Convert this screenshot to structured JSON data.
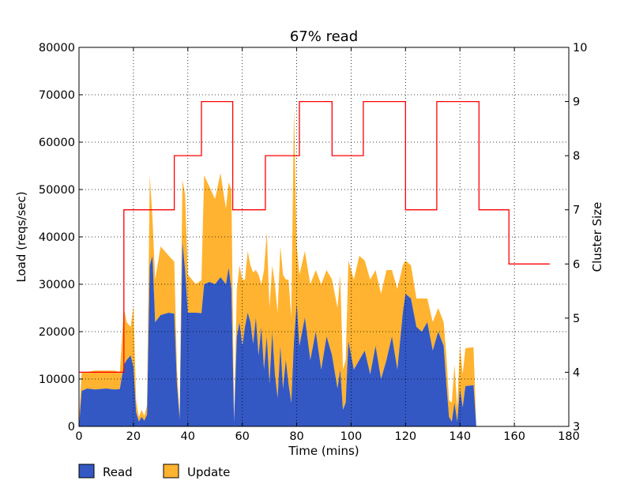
{
  "chart_data": {
    "type": "area",
    "title": "67% read",
    "xlabel": "Time (mins)",
    "ylabel": "Load (reqs/sec)",
    "y2label": "Cluster Size",
    "xlim": [
      0,
      180
    ],
    "ylim": [
      0,
      80000
    ],
    "y2lim": [
      3,
      10
    ],
    "xticks": [
      0,
      20,
      40,
      60,
      80,
      100,
      120,
      140,
      160,
      180
    ],
    "yticks": [
      0,
      10000,
      20000,
      30000,
      40000,
      50000,
      60000,
      70000,
      80000
    ],
    "y2ticks": [
      3,
      4,
      5,
      6,
      7,
      8,
      9,
      10
    ],
    "grid": true,
    "legend_position": "bottom-left",
    "colors": {
      "read": "#3358c4",
      "update": "#ffb330",
      "cluster": "#ff0000"
    },
    "series": [
      {
        "name": "Read",
        "stack": true,
        "points": [
          [
            0,
            0
          ],
          [
            1,
            7500
          ],
          [
            3,
            8000
          ],
          [
            6,
            7800
          ],
          [
            10,
            8000
          ],
          [
            13,
            7800
          ],
          [
            15,
            7900
          ],
          [
            16.5,
            13000
          ],
          [
            17.5,
            14000
          ],
          [
            19,
            15000
          ],
          [
            20,
            12500
          ],
          [
            21,
            3000
          ],
          [
            22,
            1000
          ],
          [
            23,
            2000
          ],
          [
            24,
            1200
          ],
          [
            25,
            2500
          ],
          [
            26,
            34000
          ],
          [
            27,
            36000
          ],
          [
            28,
            22000
          ],
          [
            30,
            23500
          ],
          [
            33,
            24000
          ],
          [
            35,
            23800
          ],
          [
            36,
            9000
          ],
          [
            37,
            1500
          ],
          [
            38,
            39000
          ],
          [
            39,
            33000
          ],
          [
            40,
            24000
          ],
          [
            43,
            24000
          ],
          [
            45,
            23900
          ],
          [
            46,
            30000
          ],
          [
            48,
            30500
          ],
          [
            50,
            30000
          ],
          [
            52,
            31500
          ],
          [
            54,
            30000
          ],
          [
            55,
            33500
          ],
          [
            56,
            29000
          ],
          [
            57,
            1000
          ],
          [
            58,
            19000
          ],
          [
            59,
            22000
          ],
          [
            60,
            17000
          ],
          [
            61,
            21000
          ],
          [
            62,
            24000
          ],
          [
            63,
            22000
          ],
          [
            64,
            17500
          ],
          [
            65,
            23000
          ],
          [
            66,
            15000
          ],
          [
            67,
            21000
          ],
          [
            68,
            12000
          ],
          [
            69,
            19000
          ],
          [
            70,
            9000
          ],
          [
            71,
            20000
          ],
          [
            72,
            11000
          ],
          [
            73,
            6000
          ],
          [
            74,
            17000
          ],
          [
            75,
            8000
          ],
          [
            76,
            14000
          ],
          [
            77,
            9000
          ],
          [
            78,
            5000
          ],
          [
            79,
            18000
          ],
          [
            80,
            26000
          ],
          [
            81,
            17000
          ],
          [
            83,
            23000
          ],
          [
            85,
            14000
          ],
          [
            87,
            20000
          ],
          [
            89,
            12000
          ],
          [
            91,
            19000
          ],
          [
            93,
            15000
          ],
          [
            95,
            8000
          ],
          [
            96,
            12000
          ],
          [
            97,
            3500
          ],
          [
            98,
            5000
          ],
          [
            99,
            18000
          ],
          [
            101,
            12000
          ],
          [
            103,
            14000
          ],
          [
            105,
            16000
          ],
          [
            107,
            11000
          ],
          [
            109,
            17000
          ],
          [
            111,
            10000
          ],
          [
            113,
            14000
          ],
          [
            115,
            19000
          ],
          [
            117,
            12000
          ],
          [
            119,
            24000
          ],
          [
            120,
            28000
          ],
          [
            122,
            27000
          ],
          [
            124,
            21000
          ],
          [
            126,
            20000
          ],
          [
            128,
            22000
          ],
          [
            130,
            16000
          ],
          [
            132,
            20000
          ],
          [
            134,
            17000
          ],
          [
            135,
            9000
          ],
          [
            136,
            2000
          ],
          [
            137,
            1000
          ],
          [
            138,
            5000
          ],
          [
            139,
            1000
          ],
          [
            140,
            8000
          ],
          [
            141,
            4000
          ],
          [
            142,
            8500
          ],
          [
            145,
            8700
          ],
          [
            146,
            0
          ],
          [
            172,
            0
          ]
        ]
      },
      {
        "name": "Update",
        "stack": true,
        "points": [
          [
            0,
            1500
          ],
          [
            1,
            4000
          ],
          [
            3,
            3500
          ],
          [
            6,
            4000
          ],
          [
            10,
            3800
          ],
          [
            13,
            4000
          ],
          [
            15,
            3600
          ],
          [
            16.5,
            12000
          ],
          [
            17.5,
            8000
          ],
          [
            19,
            6000
          ],
          [
            20,
            13000
          ],
          [
            21,
            2500
          ],
          [
            22,
            1000
          ],
          [
            23,
            1500
          ],
          [
            24,
            1000
          ],
          [
            25,
            2000
          ],
          [
            26,
            19000
          ],
          [
            27,
            8000
          ],
          [
            28,
            9000
          ],
          [
            30,
            14500
          ],
          [
            33,
            12000
          ],
          [
            35,
            11000
          ],
          [
            36,
            3000
          ],
          [
            37,
            1000
          ],
          [
            38,
            13000
          ],
          [
            39,
            16000
          ],
          [
            40,
            8000
          ],
          [
            43,
            6000
          ],
          [
            45,
            7000
          ],
          [
            46,
            23000
          ],
          [
            48,
            20000
          ],
          [
            50,
            18000
          ],
          [
            52,
            22000
          ],
          [
            54,
            16000
          ],
          [
            55,
            18000
          ],
          [
            56,
            21000
          ],
          [
            57,
            500
          ],
          [
            58,
            10000
          ],
          [
            59,
            12000
          ],
          [
            60,
            14000
          ],
          [
            61,
            10000
          ],
          [
            62,
            13000
          ],
          [
            63,
            12000
          ],
          [
            64,
            15000
          ],
          [
            65,
            10000
          ],
          [
            66,
            17000
          ],
          [
            67,
            9000
          ],
          [
            68,
            21000
          ],
          [
            69,
            22000
          ],
          [
            70,
            16000
          ],
          [
            71,
            14000
          ],
          [
            72,
            19000
          ],
          [
            73,
            18000
          ],
          [
            74,
            21000
          ],
          [
            75,
            24000
          ],
          [
            76,
            17000
          ],
          [
            77,
            22000
          ],
          [
            78,
            18000
          ],
          [
            79,
            49000
          ],
          [
            80,
            12000
          ],
          [
            81,
            15000
          ],
          [
            83,
            14000
          ],
          [
            85,
            16000
          ],
          [
            87,
            13000
          ],
          [
            89,
            18000
          ],
          [
            91,
            14000
          ],
          [
            93,
            16000
          ],
          [
            95,
            17000
          ],
          [
            96,
            20000
          ],
          [
            97,
            8500
          ],
          [
            98,
            9000
          ],
          [
            99,
            17000
          ],
          [
            101,
            19000
          ],
          [
            103,
            22000
          ],
          [
            105,
            19000
          ],
          [
            107,
            20000
          ],
          [
            109,
            16000
          ],
          [
            111,
            18000
          ],
          [
            113,
            19000
          ],
          [
            115,
            14000
          ],
          [
            117,
            17000
          ],
          [
            119,
            10000
          ],
          [
            120,
            7000
          ],
          [
            122,
            7000
          ],
          [
            124,
            6000
          ],
          [
            126,
            7000
          ],
          [
            128,
            5000
          ],
          [
            130,
            6000
          ],
          [
            132,
            5000
          ],
          [
            134,
            5000
          ],
          [
            135,
            6000
          ],
          [
            136,
            3500
          ],
          [
            137,
            4000
          ],
          [
            138,
            8000
          ],
          [
            139,
            3000
          ],
          [
            140,
            9000
          ],
          [
            141,
            7000
          ],
          [
            142,
            8000
          ],
          [
            145,
            8000
          ],
          [
            146,
            0
          ],
          [
            172,
            0
          ]
        ]
      },
      {
        "name": "Cluster Size",
        "axis": "right",
        "step": true,
        "points": [
          [
            0,
            4
          ],
          [
            16.5,
            4
          ],
          [
            16.5,
            7
          ],
          [
            35,
            7
          ],
          [
            35,
            8
          ],
          [
            45,
            8
          ],
          [
            45,
            9
          ],
          [
            56.5,
            9
          ],
          [
            56.5,
            7
          ],
          [
            68.5,
            7
          ],
          [
            68.5,
            8
          ],
          [
            81,
            8
          ],
          [
            81,
            9
          ],
          [
            93,
            9
          ],
          [
            93,
            8
          ],
          [
            104.5,
            8
          ],
          [
            104.5,
            9
          ],
          [
            120,
            9
          ],
          [
            120,
            7
          ],
          [
            131.5,
            7
          ],
          [
            131.5,
            9
          ],
          [
            147,
            9
          ],
          [
            147,
            7
          ],
          [
            158,
            7
          ],
          [
            158,
            6
          ],
          [
            173,
            6
          ]
        ]
      }
    ]
  }
}
